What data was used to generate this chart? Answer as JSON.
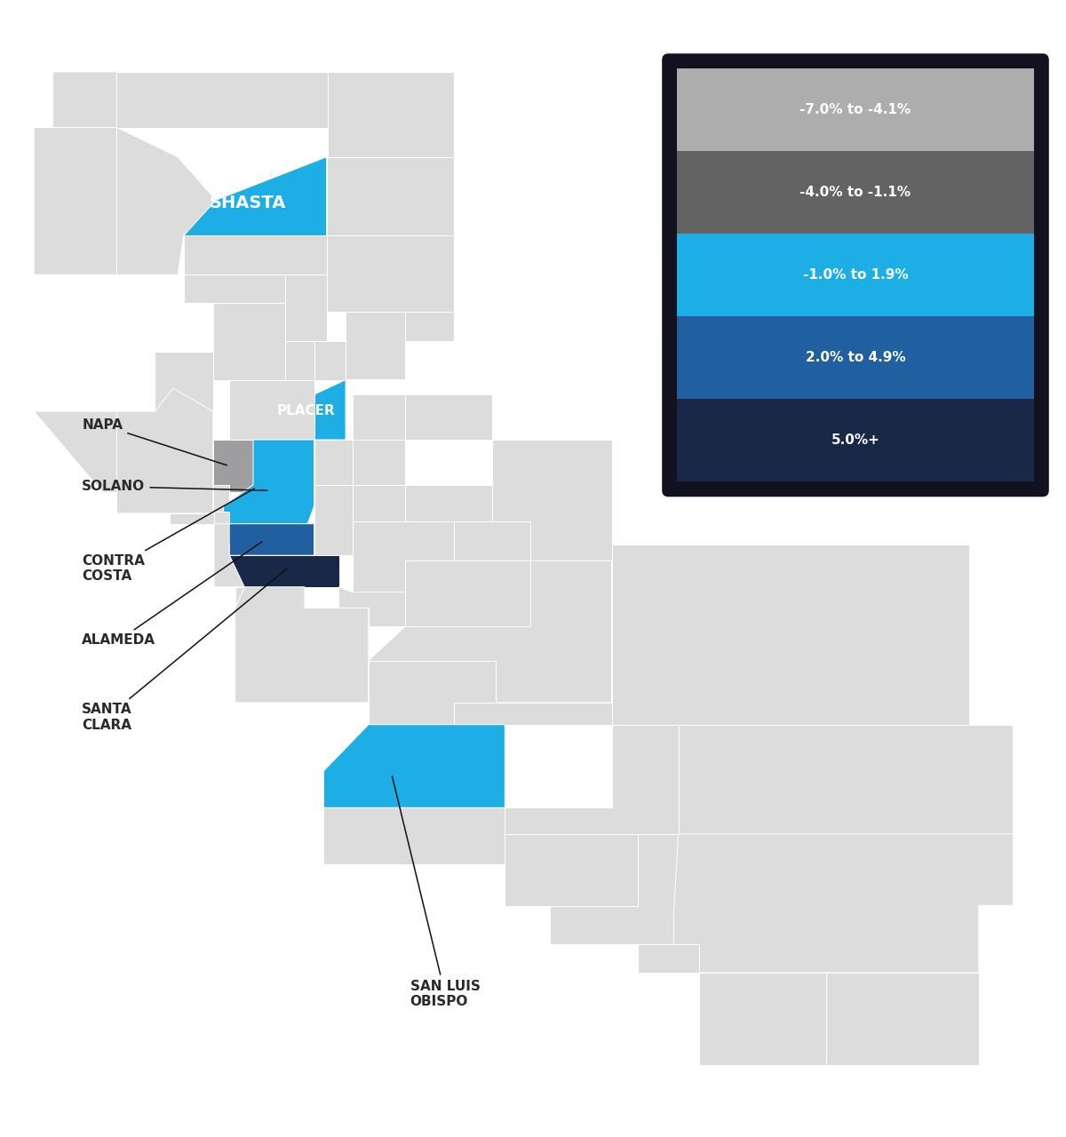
{
  "county_colors": {
    "Shasta": "#1CAEE4",
    "Placer": "#1CAEE4",
    "Solano": "#1CAEE4",
    "Contra Costa": "#1CAEE4",
    "San Luis Obispo": "#1CAEE4",
    "Napa": "#9E9EA0",
    "Alameda": "#2060A0",
    "Santa Clara": "#192847"
  },
  "default_color": "#DCDCDC",
  "border_color": "#FFFFFF",
  "background_color": "#FFFFFF",
  "legend_items": [
    {
      "label": "-7.0% to -4.1%",
      "color": "#ADADAD"
    },
    {
      "label": "-4.0% to -1.1%",
      "color": "#636363"
    },
    {
      "label": "-1.0% to 1.9%",
      "color": "#1CAEE4"
    },
    {
      "label": "2.0% to 4.9%",
      "color": "#2060A0"
    },
    {
      "label": "5.0%+",
      "color": "#192847"
    }
  ],
  "legend_bg_color": "#111120",
  "figsize": [
    12.0,
    12.8
  ],
  "dpi": 100,
  "lon_min": -124.55,
  "lon_max": -113.8,
  "lat_min": 32.4,
  "lat_max": 42.15
}
